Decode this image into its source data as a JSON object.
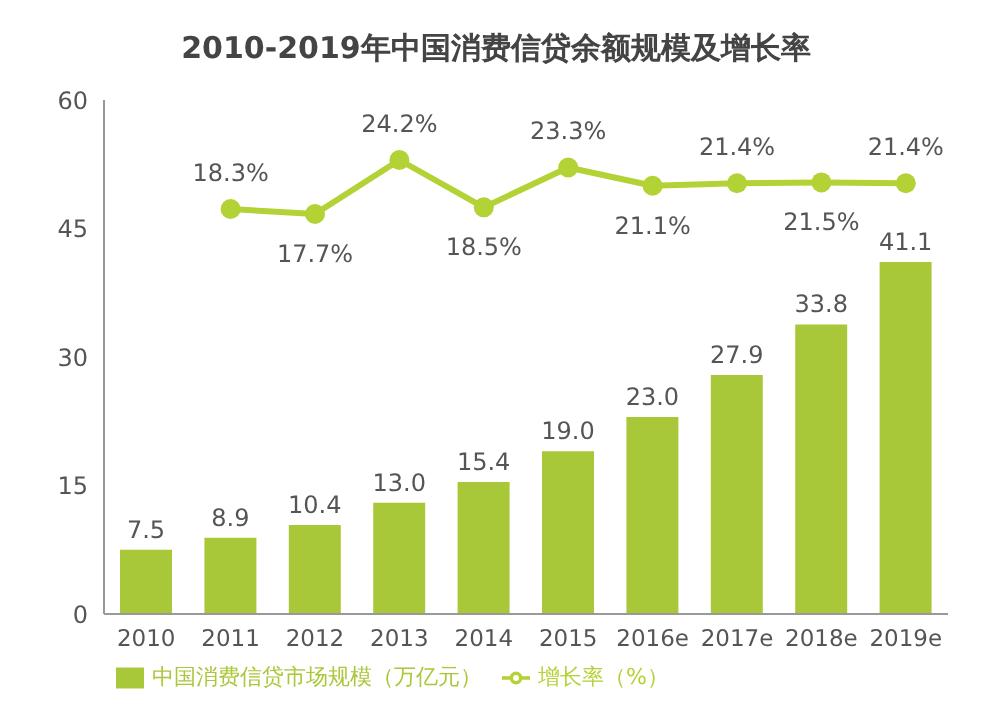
{
  "chart_data": {
    "type": "bar",
    "title": "2010-2019年中国消费信贷余额规模及增长率",
    "categories": [
      "2010",
      "2011",
      "2012",
      "2013",
      "2014",
      "2015",
      "2016e",
      "2017e",
      "2018e",
      "2019e"
    ],
    "series": [
      {
        "name": "中国消费信贷市场规模（万亿元）",
        "color": "#a8c83a",
        "values": [
          7.5,
          8.9,
          10.4,
          13.0,
          15.4,
          19.0,
          23.0,
          27.9,
          33.8,
          41.1
        ],
        "value_labels": [
          "7.5",
          "8.9",
          "10.4",
          "13.0",
          "15.4",
          "19.0",
          "23.0",
          "27.9",
          "33.8",
          "41.1"
        ]
      },
      {
        "name": "增长率（%）",
        "type": "line",
        "axis": "y2",
        "color": "#b3d236",
        "values": [
          null,
          18.3,
          17.7,
          24.2,
          18.5,
          23.3,
          21.1,
          21.4,
          21.5,
          21.4
        ],
        "value_labels": [
          null,
          "18.3%",
          "17.7%",
          "24.2%",
          "18.5%",
          "23.3%",
          "21.1%",
          "21.4%",
          "21.5%",
          "21.4%"
        ]
      }
    ],
    "ylim": [
      0,
      60
    ],
    "yticks": [
      0,
      15,
      30,
      45,
      60
    ],
    "legend": "bottom",
    "marker": "circle"
  }
}
